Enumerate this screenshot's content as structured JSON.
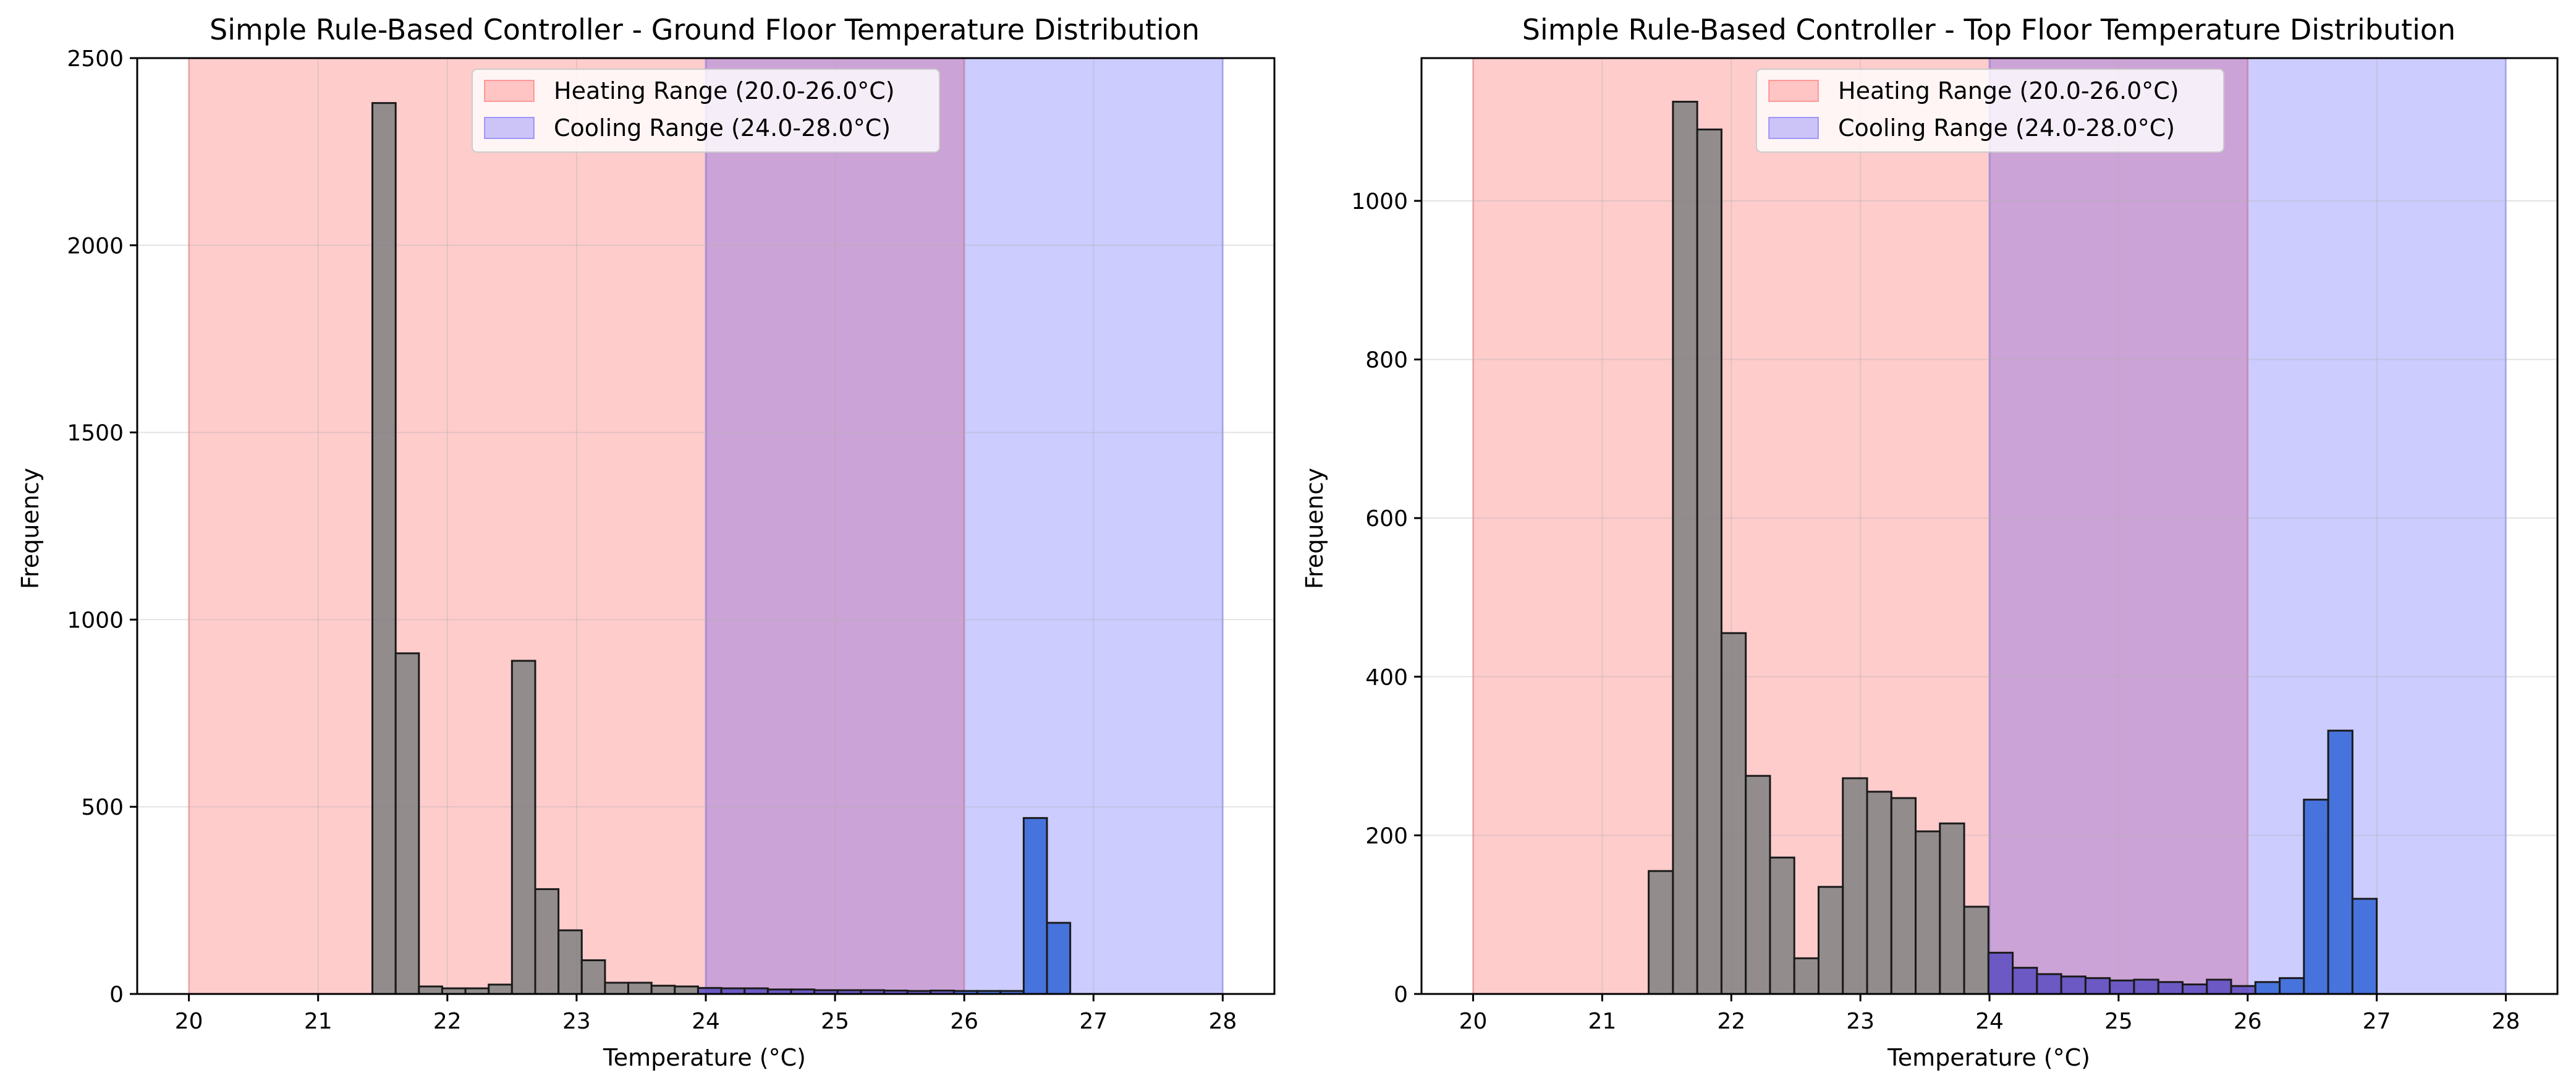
{
  "chart_data": [
    {
      "type": "bar",
      "title": "Simple Rule-Based Controller - Ground Floor Temperature Distribution",
      "xlabel": "Temperature (°C)",
      "ylabel": "Frequency",
      "xlim": [
        19.6,
        28.4
      ],
      "ylim": [
        0,
        2500
      ],
      "xticks": [
        20,
        21,
        22,
        23,
        24,
        25,
        26,
        27,
        28
      ],
      "yticks": [
        0,
        500,
        1000,
        1500,
        2000,
        2500
      ],
      "grid": true,
      "legend_position": "top-center",
      "bands": [
        {
          "name": "Heating Range (20.0-26.0°C)",
          "from": 20.0,
          "to": 26.0,
          "color": "#ff0000"
        },
        {
          "name": "Cooling Range (24.0-28.0°C)",
          "from": 24.0,
          "to": 28.0,
          "color": "#0000ff"
        }
      ],
      "bin_width": 0.18,
      "bins": [
        {
          "x0": 21.42,
          "value": 2380
        },
        {
          "x0": 21.6,
          "value": 910
        },
        {
          "x0": 21.78,
          "value": 20
        },
        {
          "x0": 21.96,
          "value": 15
        },
        {
          "x0": 22.14,
          "value": 15
        },
        {
          "x0": 22.32,
          "value": 25
        },
        {
          "x0": 22.5,
          "value": 890
        },
        {
          "x0": 22.68,
          "value": 280
        },
        {
          "x0": 22.86,
          "value": 170
        },
        {
          "x0": 23.04,
          "value": 90
        },
        {
          "x0": 23.22,
          "value": 30
        },
        {
          "x0": 23.4,
          "value": 30
        },
        {
          "x0": 23.58,
          "value": 22
        },
        {
          "x0": 23.76,
          "value": 20
        },
        {
          "x0": 23.94,
          "value": 16
        },
        {
          "x0": 24.12,
          "value": 15
        },
        {
          "x0": 24.3,
          "value": 15
        },
        {
          "x0": 24.48,
          "value": 12
        },
        {
          "x0": 24.66,
          "value": 12
        },
        {
          "x0": 24.84,
          "value": 10
        },
        {
          "x0": 25.02,
          "value": 10
        },
        {
          "x0": 25.2,
          "value": 10
        },
        {
          "x0": 25.38,
          "value": 9
        },
        {
          "x0": 25.56,
          "value": 8
        },
        {
          "x0": 25.74,
          "value": 9
        },
        {
          "x0": 25.92,
          "value": 8
        },
        {
          "x0": 26.1,
          "value": 8
        },
        {
          "x0": 26.28,
          "value": 8
        },
        {
          "x0": 26.46,
          "value": 470
        },
        {
          "x0": 26.64,
          "value": 190
        }
      ]
    },
    {
      "type": "bar",
      "title": "Simple Rule-Based Controller - Top Floor Temperature Distribution",
      "xlabel": "Temperature (°C)",
      "ylabel": "Frequency",
      "xlim": [
        19.6,
        28.4
      ],
      "ylim": [
        0,
        1180
      ],
      "xticks": [
        20,
        21,
        22,
        23,
        24,
        25,
        26,
        27,
        28
      ],
      "yticks": [
        0,
        200,
        400,
        600,
        800,
        1000
      ],
      "grid": true,
      "legend_position": "top-center",
      "bands": [
        {
          "name": "Heating Range (20.0-26.0°C)",
          "from": 20.0,
          "to": 26.0,
          "color": "#ff0000"
        },
        {
          "name": "Cooling Range (24.0-28.0°C)",
          "from": 24.0,
          "to": 28.0,
          "color": "#0000ff"
        }
      ],
      "bin_width": 0.188,
      "bins": [
        {
          "x0": 21.36,
          "value": 155
        },
        {
          "x0": 21.548,
          "value": 1125
        },
        {
          "x0": 21.736,
          "value": 1090
        },
        {
          "x0": 21.924,
          "value": 455
        },
        {
          "x0": 22.112,
          "value": 275
        },
        {
          "x0": 22.3,
          "value": 172
        },
        {
          "x0": 22.488,
          "value": 45
        },
        {
          "x0": 22.676,
          "value": 135
        },
        {
          "x0": 22.864,
          "value": 272
        },
        {
          "x0": 23.052,
          "value": 255
        },
        {
          "x0": 23.24,
          "value": 247
        },
        {
          "x0": 23.428,
          "value": 205
        },
        {
          "x0": 23.616,
          "value": 215
        },
        {
          "x0": 23.804,
          "value": 110
        },
        {
          "x0": 23.992,
          "value": 52
        },
        {
          "x0": 24.18,
          "value": 33
        },
        {
          "x0": 24.368,
          "value": 25
        },
        {
          "x0": 24.556,
          "value": 22
        },
        {
          "x0": 24.744,
          "value": 20
        },
        {
          "x0": 24.932,
          "value": 17
        },
        {
          "x0": 25.12,
          "value": 18
        },
        {
          "x0": 25.308,
          "value": 15
        },
        {
          "x0": 25.496,
          "value": 12
        },
        {
          "x0": 25.684,
          "value": 18
        },
        {
          "x0": 25.872,
          "value": 10
        },
        {
          "x0": 26.06,
          "value": 15
        },
        {
          "x0": 26.248,
          "value": 20
        },
        {
          "x0": 26.436,
          "value": 245
        },
        {
          "x0": 26.624,
          "value": 332
        },
        {
          "x0": 26.812,
          "value": 120
        }
      ]
    }
  ]
}
